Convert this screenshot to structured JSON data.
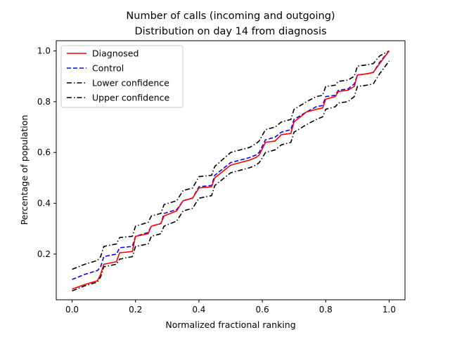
{
  "chart_data": {
    "type": "line",
    "title": [
      "Number of calls (incoming and outgoing)",
      "Distribution on day 14 from diagnosis"
    ],
    "xlabel": "Normalized fractional ranking",
    "ylabel": "Percentage of population",
    "xlim": [
      -0.05,
      1.05
    ],
    "ylim": [
      0.02,
      1.04
    ],
    "xticks": [
      0.0,
      0.2,
      0.4,
      0.6,
      0.8,
      1.0
    ],
    "xtick_labels": [
      "0.0",
      "0.2",
      "0.4",
      "0.6",
      "0.8",
      "1.0"
    ],
    "yticks": [
      0.2,
      0.4,
      0.6,
      0.8,
      1.0
    ],
    "ytick_labels": [
      "0.2",
      "0.4",
      "0.6",
      "0.8",
      "1.0"
    ],
    "grid": false,
    "legend_position": "top-left",
    "series": [
      {
        "name": "Diagnosed",
        "color": "#ff0000",
        "dash": "solid",
        "x": [
          0.0,
          0.04,
          0.08,
          0.09,
          0.1,
          0.14,
          0.15,
          0.19,
          0.2,
          0.24,
          0.25,
          0.28,
          0.29,
          0.33,
          0.35,
          0.38,
          0.4,
          0.44,
          0.45,
          0.5,
          0.56,
          0.58,
          0.59,
          0.61,
          0.64,
          0.66,
          0.69,
          0.7,
          0.74,
          0.77,
          0.79,
          0.8,
          0.83,
          0.84,
          0.87,
          0.89,
          0.9,
          0.93,
          0.95,
          0.97,
          1.0
        ],
        "y": [
          0.062,
          0.08,
          0.095,
          0.12,
          0.16,
          0.17,
          0.205,
          0.21,
          0.27,
          0.28,
          0.31,
          0.32,
          0.35,
          0.37,
          0.41,
          0.42,
          0.46,
          0.465,
          0.5,
          0.55,
          0.57,
          0.58,
          0.59,
          0.64,
          0.645,
          0.67,
          0.675,
          0.72,
          0.76,
          0.77,
          0.775,
          0.81,
          0.82,
          0.84,
          0.845,
          0.86,
          0.905,
          0.91,
          0.915,
          0.95,
          1.0
        ]
      },
      {
        "name": "Control",
        "color": "#0000ff",
        "dash": "dashed",
        "x": [
          0.0,
          0.04,
          0.08,
          0.09,
          0.1,
          0.14,
          0.15,
          0.19,
          0.2,
          0.24,
          0.25,
          0.28,
          0.29,
          0.33,
          0.35,
          0.38,
          0.4,
          0.44,
          0.45,
          0.5,
          0.56,
          0.58,
          0.59,
          0.61,
          0.64,
          0.66,
          0.69,
          0.7,
          0.74,
          0.77,
          0.79,
          0.8,
          0.83,
          0.84,
          0.87,
          0.89,
          0.9,
          0.93,
          0.95,
          0.97,
          1.0
        ],
        "y": [
          0.1,
          0.12,
          0.135,
          0.15,
          0.19,
          0.2,
          0.225,
          0.23,
          0.27,
          0.285,
          0.31,
          0.32,
          0.36,
          0.375,
          0.41,
          0.42,
          0.465,
          0.47,
          0.51,
          0.56,
          0.58,
          0.59,
          0.6,
          0.65,
          0.66,
          0.68,
          0.69,
          0.73,
          0.76,
          0.78,
          0.785,
          0.82,
          0.825,
          0.845,
          0.85,
          0.87,
          0.905,
          0.91,
          0.915,
          0.955,
          1.0
        ]
      },
      {
        "name": "Lower confidence",
        "color": "#000000",
        "dash": "dashdot",
        "x": [
          0.0,
          0.04,
          0.08,
          0.09,
          0.1,
          0.14,
          0.15,
          0.19,
          0.2,
          0.24,
          0.25,
          0.28,
          0.29,
          0.33,
          0.35,
          0.38,
          0.4,
          0.44,
          0.45,
          0.5,
          0.56,
          0.58,
          0.59,
          0.61,
          0.64,
          0.66,
          0.69,
          0.7,
          0.74,
          0.77,
          0.79,
          0.8,
          0.83,
          0.84,
          0.87,
          0.89,
          0.9,
          0.93,
          0.95,
          0.97,
          1.0
        ],
        "y": [
          0.055,
          0.075,
          0.09,
          0.11,
          0.15,
          0.16,
          0.18,
          0.19,
          0.23,
          0.24,
          0.27,
          0.28,
          0.31,
          0.33,
          0.37,
          0.38,
          0.42,
          0.43,
          0.47,
          0.52,
          0.54,
          0.55,
          0.56,
          0.6,
          0.61,
          0.63,
          0.64,
          0.68,
          0.71,
          0.73,
          0.74,
          0.77,
          0.78,
          0.795,
          0.8,
          0.82,
          0.86,
          0.865,
          0.87,
          0.91,
          0.96
        ]
      },
      {
        "name": "Upper confidence",
        "color": "#000000",
        "dash": "dashdot",
        "x": [
          0.0,
          0.04,
          0.08,
          0.09,
          0.1,
          0.14,
          0.15,
          0.19,
          0.2,
          0.24,
          0.25,
          0.28,
          0.29,
          0.33,
          0.35,
          0.38,
          0.4,
          0.44,
          0.45,
          0.5,
          0.56,
          0.58,
          0.59,
          0.61,
          0.64,
          0.66,
          0.69,
          0.7,
          0.74,
          0.77,
          0.79,
          0.8,
          0.83,
          0.84,
          0.87,
          0.89,
          0.9,
          0.93,
          0.95,
          0.97,
          1.0
        ],
        "y": [
          0.14,
          0.16,
          0.175,
          0.19,
          0.23,
          0.24,
          0.265,
          0.27,
          0.31,
          0.325,
          0.35,
          0.36,
          0.395,
          0.41,
          0.45,
          0.46,
          0.505,
          0.51,
          0.545,
          0.6,
          0.62,
          0.635,
          0.645,
          0.69,
          0.7,
          0.72,
          0.73,
          0.77,
          0.8,
          0.82,
          0.825,
          0.86,
          0.865,
          0.88,
          0.885,
          0.9,
          0.94,
          0.945,
          0.95,
          0.98,
          1.0
        ]
      }
    ]
  }
}
